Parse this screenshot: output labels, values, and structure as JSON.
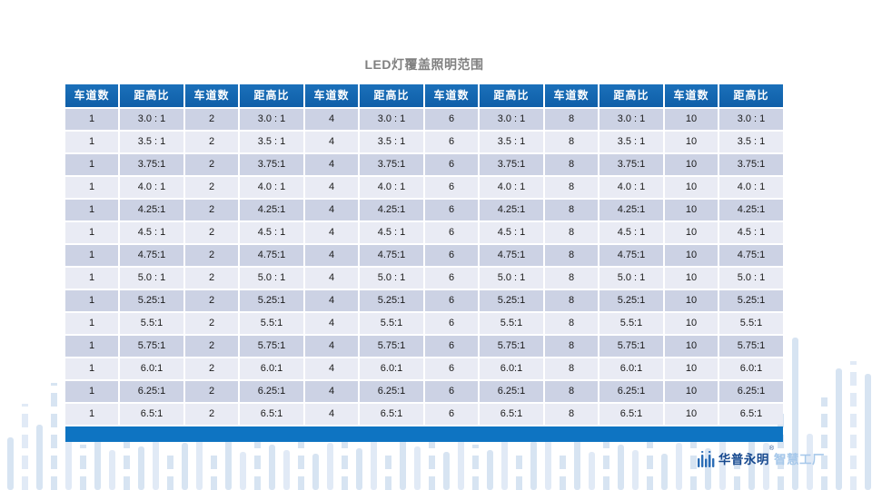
{
  "page_title": "LED灯覆盖照明范围",
  "table": {
    "lane_header": "车道数",
    "ratio_header": "距高比",
    "header_repeat": 6,
    "lane_counts": [
      "1",
      "2",
      "4",
      "6",
      "8",
      "10"
    ],
    "ratios": [
      "3.0 : 1",
      "3.5 : 1",
      "3.75:1",
      "4.0 : 1",
      "4.25:1",
      "4.5 : 1",
      "4.75:1",
      "5.0 : 1",
      "5.25:1",
      "5.5:1",
      "5.75:1",
      "6.0:1",
      "6.25:1",
      "6.5:1"
    ]
  },
  "footer_logo": {
    "brand": "华普永明",
    "reg_mark": "®",
    "suffix": "智慧工厂"
  },
  "colors": {
    "header_blue": "#1263ac",
    "footer_blue": "#0e74c2",
    "row_odd": "#ccd2e4",
    "row_even": "#e9ebf4",
    "title_gray": "#808080",
    "decor_blue": "#d7e4f2",
    "brand_dark": "#17498f",
    "brand_light": "#a6c8ea"
  }
}
